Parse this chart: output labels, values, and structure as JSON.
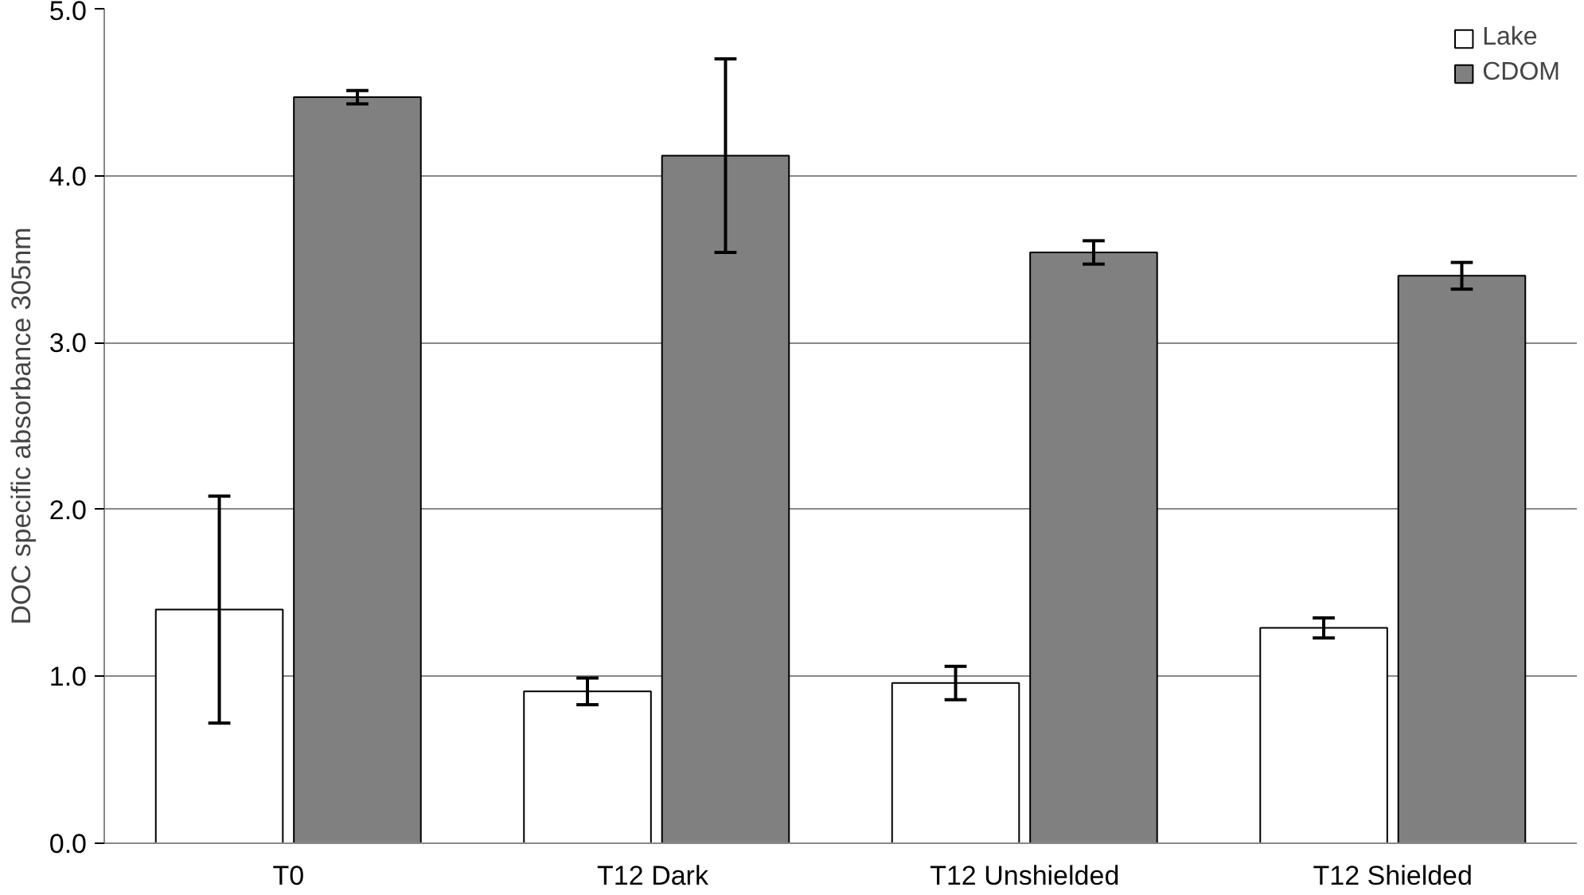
{
  "chart_data": {
    "type": "bar",
    "ylabel": "DOC specific absorbance 305nm",
    "categories": [
      "T0",
      "T12  Dark",
      "T12 Unshielded",
      "T12 Shielded"
    ],
    "series": [
      {
        "name": "Lake",
        "color": "#ffffff",
        "values": [
          1.4,
          0.91,
          0.96,
          1.29
        ],
        "errors": [
          0.68,
          0.08,
          0.1,
          0.06
        ]
      },
      {
        "name": "CDOM",
        "color": "#808080",
        "values": [
          4.47,
          4.12,
          3.54,
          3.4
        ],
        "errors": [
          0.04,
          0.58,
          0.07,
          0.08
        ]
      }
    ],
    "ylim": [
      0,
      5
    ],
    "yticks": [
      {
        "value": 0,
        "label": "0.0"
      },
      {
        "value": 1,
        "label": "1.0"
      },
      {
        "value": 2,
        "label": "2.0"
      },
      {
        "value": 3,
        "label": "3.0"
      },
      {
        "value": 4,
        "label": "4.0"
      },
      {
        "value": 5,
        "label": "5.0"
      }
    ],
    "grid": "y",
    "legend": "top right"
  }
}
